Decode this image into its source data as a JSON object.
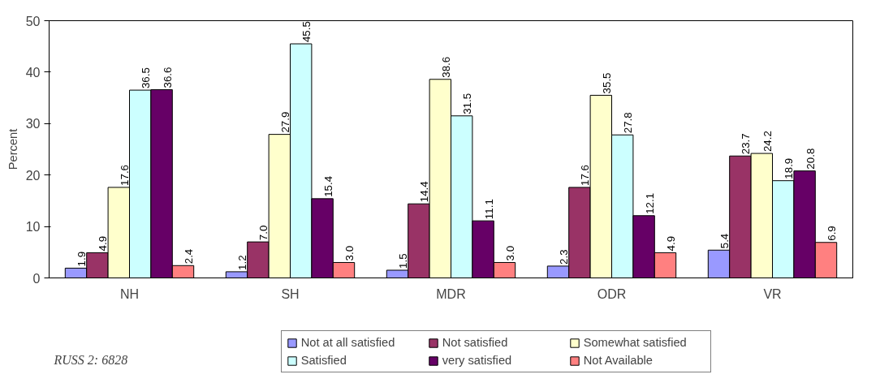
{
  "chart_data": {
    "type": "bar",
    "ylabel": "Percent",
    "categories": [
      "NH",
      "SH",
      "MDR",
      "ODR",
      "VR"
    ],
    "series": [
      {
        "name": "Not at all satisfied",
        "color": "#9999ff",
        "values": [
          1.9,
          1.2,
          1.5,
          2.3,
          5.4
        ],
        "value_labels": [
          "1.9",
          "1.2",
          "1.5",
          "2.3",
          "5.4"
        ]
      },
      {
        "name": "Not satisfied",
        "color": "#993366",
        "values": [
          4.9,
          7.0,
          14.4,
          17.6,
          23.7
        ],
        "value_labels": [
          "4.9",
          "7.0",
          "14.4",
          "17.6",
          "23.7"
        ]
      },
      {
        "name": "Somewhat satisfied",
        "color": "#ffffcc",
        "values": [
          17.6,
          27.9,
          38.6,
          35.5,
          24.2
        ],
        "value_labels": [
          "17.6",
          "27.9",
          "38.6",
          "35.5",
          "24.2"
        ]
      },
      {
        "name": "Satisfied",
        "color": "#ccffff",
        "values": [
          36.5,
          45.5,
          31.5,
          27.8,
          18.9
        ],
        "value_labels": [
          "36.5",
          "45.5",
          "31.5",
          "27.8",
          "18.9"
        ]
      },
      {
        "name": "very satisfied",
        "color": "#660066",
        "values": [
          36.6,
          15.4,
          11.1,
          12.1,
          20.8
        ],
        "value_labels": [
          "36.6",
          "15.4",
          "11.1",
          "12.1",
          "20.8"
        ]
      },
      {
        "name": "Not Available",
        "color": "#ff8080",
        "values": [
          2.4,
          3.0,
          3.0,
          4.9,
          6.9
        ],
        "value_labels": [
          "2.4",
          "3.0",
          "3.0",
          "4.9",
          "6.9"
        ]
      }
    ],
    "ylim": [
      0,
      50
    ],
    "yticks": [
      0,
      10,
      20,
      30,
      40,
      50
    ],
    "legend": "bottom right",
    "grid": false,
    "annotations": [
      "RUSS 2: 6828"
    ]
  }
}
